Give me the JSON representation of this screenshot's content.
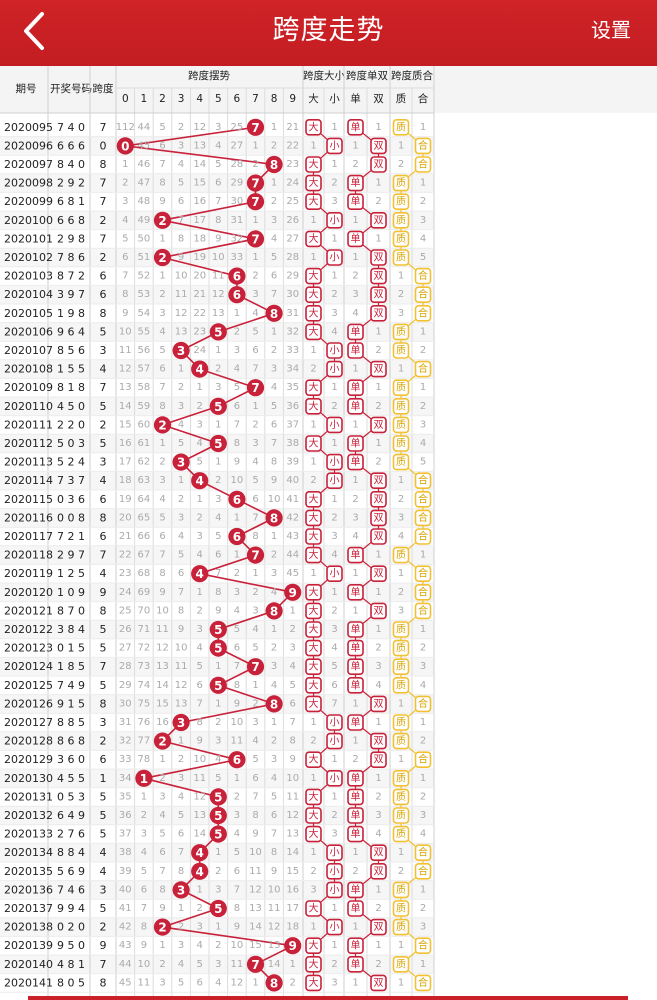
{
  "header": {
    "title": "跨度走势",
    "settings": "设置",
    "back_icon": "chevron-left-icon"
  },
  "columns": {
    "period": "期号",
    "draw": "开奖号码",
    "span": "跨度",
    "swing": "跨度摆势",
    "size": "跨度大小",
    "parity": "跨度单双",
    "prime": "跨度质合",
    "digits": [
      "0",
      "1",
      "2",
      "3",
      "4",
      "5",
      "6",
      "7",
      "8",
      "9"
    ],
    "size_labels": [
      "大",
      "小"
    ],
    "parity_labels": [
      "单",
      "双"
    ],
    "prime_labels": [
      "质",
      "合"
    ]
  },
  "colors": {
    "brand": "#c9202a",
    "ball": "#c8213a",
    "odd_even_marker": "#c8213a",
    "prime_marker": "#f2c133",
    "line": "#c8213a"
  },
  "rows": [
    {
      "p": "2020095",
      "d": "7 4 0",
      "s": 7,
      "m": [
        112,
        44,
        5,
        2,
        12,
        3,
        25,
        0,
        1,
        21
      ],
      "big": 0,
      "small": 1,
      "odd": 0,
      "even": 1,
      "prime": 0,
      "comp": 1
    },
    {
      "p": "2020096",
      "d": "6 6 6",
      "s": 0,
      "m": [
        0,
        45,
        6,
        3,
        13,
        4,
        27,
        1,
        2,
        22
      ],
      "big": 1,
      "small": 0,
      "odd": 1,
      "even": 0,
      "prime": 1,
      "comp": 0
    },
    {
      "p": "2020097",
      "d": "8 4 0",
      "s": 8,
      "m": [
        1,
        46,
        7,
        4,
        14,
        5,
        28,
        2,
        0,
        23
      ],
      "big": 0,
      "small": 1,
      "odd": 2,
      "even": 0,
      "prime": 2,
      "comp": 0
    },
    {
      "p": "2020098",
      "d": "2 9 2",
      "s": 7,
      "m": [
        2,
        47,
        8,
        5,
        15,
        6,
        29,
        0,
        1,
        24
      ],
      "big": 0,
      "small": 2,
      "odd": 0,
      "even": 1,
      "prime": 0,
      "comp": 1
    },
    {
      "p": "2020099",
      "d": "6 8 1",
      "s": 7,
      "m": [
        3,
        48,
        9,
        6,
        16,
        7,
        30,
        0,
        2,
        25
      ],
      "big": 0,
      "small": 3,
      "odd": 0,
      "even": 2,
      "prime": 0,
      "comp": 2
    },
    {
      "p": "2020100",
      "d": "6 6 8",
      "s": 2,
      "m": [
        4,
        49,
        0,
        7,
        17,
        8,
        31,
        1,
        3,
        26
      ],
      "big": 1,
      "small": 0,
      "odd": 1,
      "even": 0,
      "prime": 0,
      "comp": 3
    },
    {
      "p": "2020101",
      "d": "2 9 8",
      "s": 7,
      "m": [
        5,
        50,
        1,
        8,
        18,
        9,
        32,
        0,
        4,
        27
      ],
      "big": 0,
      "small": 1,
      "odd": 0,
      "even": 1,
      "prime": 0,
      "comp": 4
    },
    {
      "p": "2020102",
      "d": "7 8 6",
      "s": 2,
      "m": [
        6,
        51,
        0,
        9,
        19,
        10,
        33,
        1,
        5,
        28
      ],
      "big": 1,
      "small": 0,
      "odd": 1,
      "even": 0,
      "prime": 0,
      "comp": 5
    },
    {
      "p": "2020103",
      "d": "8 7 2",
      "s": 6,
      "m": [
        7,
        52,
        1,
        10,
        20,
        11,
        0,
        2,
        6,
        29
      ],
      "big": 0,
      "small": 1,
      "odd": 2,
      "even": 0,
      "prime": 1,
      "comp": 0
    },
    {
      "p": "2020104",
      "d": "3 9 7",
      "s": 6,
      "m": [
        8,
        53,
        2,
        11,
        21,
        12,
        0,
        3,
        7,
        30
      ],
      "big": 0,
      "small": 2,
      "odd": 3,
      "even": 0,
      "prime": 2,
      "comp": 0
    },
    {
      "p": "2020105",
      "d": "1 9 8",
      "s": 8,
      "m": [
        9,
        54,
        3,
        12,
        22,
        13,
        1,
        4,
        0,
        31
      ],
      "big": 0,
      "small": 3,
      "odd": 4,
      "even": 0,
      "prime": 3,
      "comp": 0
    },
    {
      "p": "2020106",
      "d": "9 6 4",
      "s": 5,
      "m": [
        10,
        55,
        4,
        13,
        23,
        0,
        2,
        5,
        1,
        32
      ],
      "big": 0,
      "small": 4,
      "odd": 0,
      "even": 1,
      "prime": 0,
      "comp": 1
    },
    {
      "p": "2020107",
      "d": "8 5 6",
      "s": 3,
      "m": [
        11,
        56,
        5,
        0,
        24,
        1,
        3,
        6,
        2,
        33
      ],
      "big": 1,
      "small": 0,
      "odd": 0,
      "even": 2,
      "prime": 0,
      "comp": 2
    },
    {
      "p": "2020108",
      "d": "1 5 5",
      "s": 4,
      "m": [
        12,
        57,
        6,
        1,
        0,
        2,
        4,
        7,
        3,
        34
      ],
      "big": 2,
      "small": 0,
      "odd": 1,
      "even": 0,
      "prime": 1,
      "comp": 0
    },
    {
      "p": "2020109",
      "d": "8 1 8",
      "s": 7,
      "m": [
        13,
        58,
        7,
        2,
        1,
        3,
        5,
        0,
        4,
        35
      ],
      "big": 0,
      "small": 1,
      "odd": 0,
      "even": 1,
      "prime": 0,
      "comp": 1
    },
    {
      "p": "2020110",
      "d": "4 5 0",
      "s": 5,
      "m": [
        14,
        59,
        8,
        3,
        2,
        0,
        6,
        1,
        5,
        36
      ],
      "big": 0,
      "small": 2,
      "odd": 0,
      "even": 2,
      "prime": 0,
      "comp": 2
    },
    {
      "p": "2020111",
      "d": "2 2 0",
      "s": 2,
      "m": [
        15,
        60,
        0,
        4,
        3,
        1,
        7,
        2,
        6,
        37
      ],
      "big": 1,
      "small": 0,
      "odd": 1,
      "even": 0,
      "prime": 0,
      "comp": 3
    },
    {
      "p": "2020112",
      "d": "5 0 3",
      "s": 5,
      "m": [
        16,
        61,
        1,
        5,
        4,
        0,
        8,
        3,
        7,
        38
      ],
      "big": 0,
      "small": 1,
      "odd": 0,
      "even": 1,
      "prime": 0,
      "comp": 4
    },
    {
      "p": "2020113",
      "d": "5 2 4",
      "s": 3,
      "m": [
        17,
        62,
        2,
        0,
        5,
        1,
        9,
        4,
        8,
        39
      ],
      "big": 1,
      "small": 0,
      "odd": 0,
      "even": 2,
      "prime": 0,
      "comp": 5
    },
    {
      "p": "2020114",
      "d": "7 3 7",
      "s": 4,
      "m": [
        18,
        63,
        3,
        1,
        0,
        2,
        10,
        5,
        9,
        40
      ],
      "big": 2,
      "small": 0,
      "odd": 1,
      "even": 0,
      "prime": 1,
      "comp": 0
    },
    {
      "p": "2020115",
      "d": "0 3 6",
      "s": 6,
      "m": [
        19,
        64,
        4,
        2,
        1,
        3,
        0,
        6,
        10,
        41
      ],
      "big": 0,
      "small": 1,
      "odd": 2,
      "even": 0,
      "prime": 2,
      "comp": 0
    },
    {
      "p": "2020116",
      "d": "0 0 8",
      "s": 8,
      "m": [
        20,
        65,
        5,
        3,
        2,
        4,
        1,
        7,
        0,
        42
      ],
      "big": 0,
      "small": 2,
      "odd": 3,
      "even": 0,
      "prime": 3,
      "comp": 0
    },
    {
      "p": "2020117",
      "d": "7 2 1",
      "s": 6,
      "m": [
        21,
        66,
        6,
        4,
        3,
        5,
        0,
        8,
        1,
        43
      ],
      "big": 0,
      "small": 3,
      "odd": 4,
      "even": 0,
      "prime": 4,
      "comp": 0
    },
    {
      "p": "2020118",
      "d": "2 9 7",
      "s": 7,
      "m": [
        22,
        67,
        7,
        5,
        4,
        6,
        1,
        0,
        2,
        44
      ],
      "big": 0,
      "small": 4,
      "odd": 0,
      "even": 1,
      "prime": 0,
      "comp": 1
    },
    {
      "p": "2020119",
      "d": "1 2 5",
      "s": 4,
      "m": [
        23,
        68,
        8,
        6,
        0,
        7,
        2,
        1,
        3,
        45
      ],
      "big": 1,
      "small": 0,
      "odd": 1,
      "even": 0,
      "prime": 1,
      "comp": 0
    },
    {
      "p": "2020120",
      "d": "1 0 9",
      "s": 9,
      "m": [
        24,
        69,
        9,
        7,
        1,
        8,
        3,
        2,
        4,
        0
      ],
      "big": 0,
      "small": 1,
      "odd": 0,
      "even": 1,
      "prime": 2,
      "comp": 0
    },
    {
      "p": "2020121",
      "d": "8 7 0",
      "s": 8,
      "m": [
        25,
        70,
        10,
        8,
        2,
        9,
        4,
        3,
        0,
        1
      ],
      "big": 0,
      "small": 2,
      "odd": 1,
      "even": 0,
      "prime": 3,
      "comp": 0
    },
    {
      "p": "2020122",
      "d": "3 8 4",
      "s": 5,
      "m": [
        26,
        71,
        11,
        9,
        3,
        0,
        5,
        4,
        1,
        2
      ],
      "big": 0,
      "small": 3,
      "odd": 0,
      "even": 1,
      "prime": 0,
      "comp": 1
    },
    {
      "p": "2020123",
      "d": "0 1 5",
      "s": 5,
      "m": [
        27,
        72,
        12,
        10,
        4,
        0,
        6,
        5,
        2,
        3
      ],
      "big": 0,
      "small": 4,
      "odd": 0,
      "even": 2,
      "prime": 0,
      "comp": 2
    },
    {
      "p": "2020124",
      "d": "1 8 5",
      "s": 7,
      "m": [
        28,
        73,
        13,
        11,
        5,
        1,
        7,
        0,
        3,
        4
      ],
      "big": 0,
      "small": 5,
      "odd": 0,
      "even": 3,
      "prime": 0,
      "comp": 3
    },
    {
      "p": "2020125",
      "d": "7 4 9",
      "s": 5,
      "m": [
        29,
        74,
        14,
        12,
        6,
        0,
        8,
        1,
        4,
        5
      ],
      "big": 0,
      "small": 6,
      "odd": 0,
      "even": 4,
      "prime": 0,
      "comp": 4
    },
    {
      "p": "2020126",
      "d": "9 1 5",
      "s": 8,
      "m": [
        30,
        75,
        15,
        13,
        7,
        1,
        9,
        2,
        0,
        6
      ],
      "big": 0,
      "small": 7,
      "odd": 1,
      "even": 0,
      "prime": 1,
      "comp": 0
    },
    {
      "p": "2020127",
      "d": "8 8 5",
      "s": 3,
      "m": [
        31,
        76,
        16,
        0,
        8,
        2,
        10,
        3,
        1,
        7
      ],
      "big": 1,
      "small": 0,
      "odd": 0,
      "even": 1,
      "prime": 0,
      "comp": 1
    },
    {
      "p": "2020128",
      "d": "8 6 8",
      "s": 2,
      "m": [
        32,
        77,
        0,
        1,
        9,
        3,
        11,
        4,
        2,
        8
      ],
      "big": 2,
      "small": 0,
      "odd": 1,
      "even": 0,
      "prime": 0,
      "comp": 2
    },
    {
      "p": "2020129",
      "d": "3 6 0",
      "s": 6,
      "m": [
        33,
        78,
        1,
        2,
        10,
        4,
        0,
        5,
        3,
        9
      ],
      "big": 0,
      "small": 1,
      "odd": 2,
      "even": 0,
      "prime": 1,
      "comp": 0
    },
    {
      "p": "2020130",
      "d": "4 5 5",
      "s": 1,
      "m": [
        34,
        0,
        2,
        3,
        11,
        5,
        1,
        6,
        4,
        10
      ],
      "big": 1,
      "small": 0,
      "odd": 0,
      "even": 1,
      "prime": 0,
      "comp": 1
    },
    {
      "p": "2020131",
      "d": "0 5 3",
      "s": 5,
      "m": [
        35,
        1,
        3,
        4,
        12,
        0,
        2,
        7,
        5,
        11
      ],
      "big": 0,
      "small": 1,
      "odd": 0,
      "even": 2,
      "prime": 0,
      "comp": 2
    },
    {
      "p": "2020132",
      "d": "6 4 9",
      "s": 5,
      "m": [
        36,
        2,
        4,
        5,
        13,
        0,
        3,
        8,
        6,
        12
      ],
      "big": 0,
      "small": 2,
      "odd": 0,
      "even": 3,
      "prime": 0,
      "comp": 3
    },
    {
      "p": "2020133",
      "d": "2 7 6",
      "s": 5,
      "m": [
        37,
        3,
        5,
        6,
        14,
        0,
        4,
        9,
        7,
        13
      ],
      "big": 0,
      "small": 3,
      "odd": 0,
      "even": 4,
      "prime": 0,
      "comp": 4
    },
    {
      "p": "2020134",
      "d": "8 8 4",
      "s": 4,
      "m": [
        38,
        4,
        6,
        7,
        0,
        1,
        5,
        10,
        8,
        14
      ],
      "big": 1,
      "small": 0,
      "odd": 1,
      "even": 0,
      "prime": 1,
      "comp": 0
    },
    {
      "p": "2020135",
      "d": "5 6 9",
      "s": 4,
      "m": [
        39,
        5,
        7,
        8,
        0,
        2,
        6,
        11,
        9,
        15
      ],
      "big": 2,
      "small": 0,
      "odd": 2,
      "even": 0,
      "prime": 2,
      "comp": 0
    },
    {
      "p": "2020136",
      "d": "7 4 6",
      "s": 3,
      "m": [
        40,
        6,
        8,
        0,
        1,
        3,
        7,
        12,
        10,
        16
      ],
      "big": 3,
      "small": 0,
      "odd": 0,
      "even": 1,
      "prime": 0,
      "comp": 1
    },
    {
      "p": "2020137",
      "d": "9 9 4",
      "s": 5,
      "m": [
        41,
        7,
        9,
        1,
        2,
        0,
        8,
        13,
        11,
        17
      ],
      "big": 0,
      "small": 1,
      "odd": 0,
      "even": 2,
      "prime": 0,
      "comp": 2
    },
    {
      "p": "2020138",
      "d": "0 2 0",
      "s": 2,
      "m": [
        42,
        8,
        0,
        2,
        3,
        1,
        9,
        14,
        12,
        18
      ],
      "big": 1,
      "small": 0,
      "odd": 1,
      "even": 0,
      "prime": 0,
      "comp": 3
    },
    {
      "p": "2020139",
      "d": "9 5 0",
      "s": 9,
      "m": [
        43,
        9,
        1,
        3,
        4,
        2,
        10,
        15,
        13,
        0
      ],
      "big": 0,
      "small": 1,
      "odd": 0,
      "even": 1,
      "prime": 1,
      "comp": 0
    },
    {
      "p": "2020140",
      "d": "4 8 1",
      "s": 7,
      "m": [
        44,
        10,
        2,
        4,
        5,
        3,
        11,
        0,
        14,
        1
      ],
      "big": 0,
      "small": 2,
      "odd": 0,
      "even": 2,
      "prime": 0,
      "comp": 1
    },
    {
      "p": "2020141",
      "d": "8 0 5",
      "s": 8,
      "m": [
        45,
        11,
        3,
        5,
        6,
        4,
        12,
        1,
        0,
        2
      ],
      "big": 0,
      "small": 3,
      "odd": 1,
      "even": 0,
      "prime": 1,
      "comp": 0
    }
  ]
}
